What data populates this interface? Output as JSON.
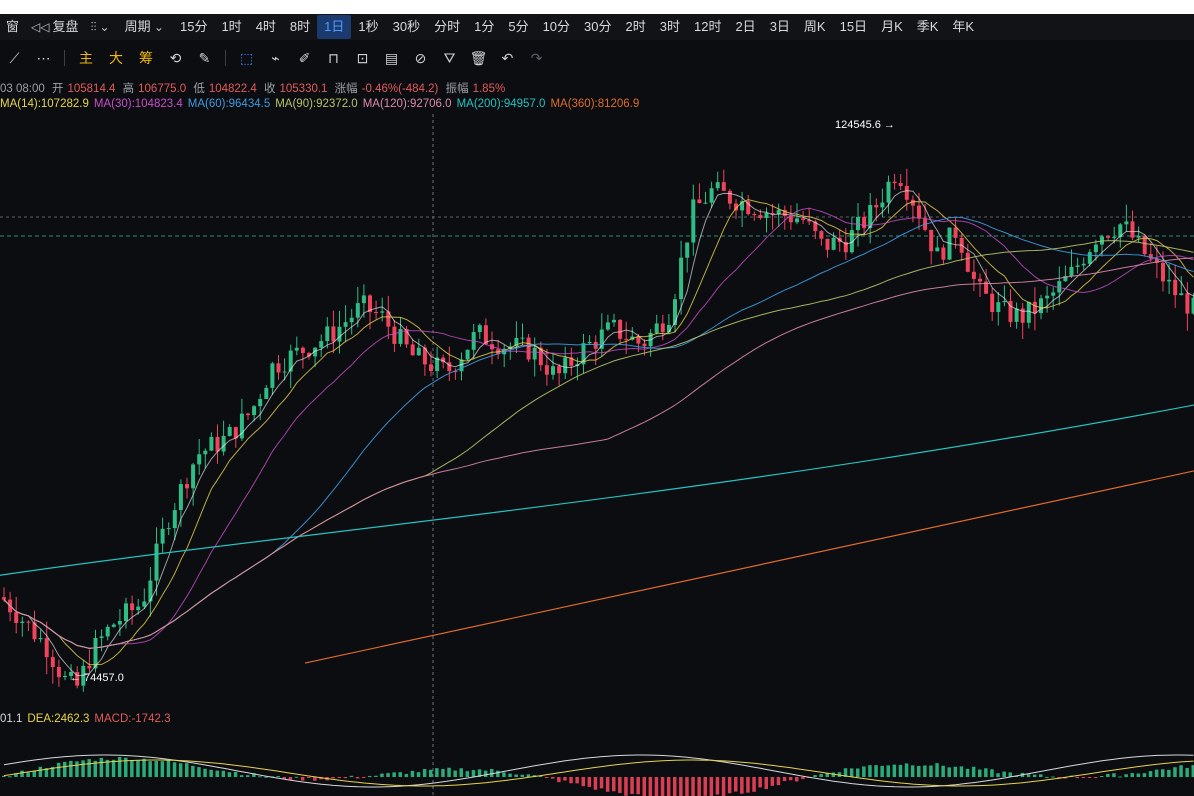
{
  "toolbar": {
    "window_label": "窗",
    "replay_label": "复盘",
    "period_label": "周期",
    "timeframes": [
      "15分",
      "1时",
      "4时",
      "8时",
      "1日",
      "1秒",
      "30秒",
      "分时",
      "1分",
      "5分",
      "10分",
      "30分",
      "2时",
      "3时",
      "12时",
      "2日",
      "3日",
      "周K",
      "15日",
      "月K",
      "季K",
      "年K"
    ],
    "active_timeframe": "1日"
  },
  "drawbar": {
    "indicator_buttons": [
      "主",
      "大",
      "筹"
    ]
  },
  "ohlc": {
    "time": "03 08:00",
    "open_label": "开",
    "open": "105814.4",
    "high_label": "高",
    "high": "106775.0",
    "low_label": "低",
    "low": "104822.4",
    "close_label": "收",
    "close": "105330.1",
    "change_label": "涨幅",
    "change": "-0.46%(-484.2)",
    "amplitude_label": "振幅",
    "amplitude": "1.85%"
  },
  "ma_legend": [
    {
      "text": "MA(14):107282.9",
      "color": "#e8d44d"
    },
    {
      "text": "MA(30):104823.4",
      "color": "#c94fc9"
    },
    {
      "text": "MA(60):96434.5",
      "color": "#3f9be0"
    },
    {
      "text": "MA(90):92372.0",
      "color": "#b7c46a"
    },
    {
      "text": "MA(120):92706.0",
      "color": "#d98aa8"
    },
    {
      "text": "MA(200):94957.0",
      "color": "#25c2c2"
    },
    {
      "text": "MA(360):81206.9",
      "color": "#e06a2c"
    }
  ],
  "macd_legend": [
    {
      "text": "01.1",
      "color": "#d7d9dc"
    },
    {
      "text": "DEA:2462.3",
      "color": "#e8d44d"
    },
    {
      "text": "MACD:-1742.3",
      "color": "#e25b5b"
    }
  ],
  "colors": {
    "up": "#2ebd85",
    "down": "#f0445c",
    "bg": "#0b0d10"
  },
  "chart_data": {
    "type": "candlestick",
    "high_marker": "124545.6",
    "low_marker": "74457.0",
    "high_value": 124545.6,
    "low_value": 74457.0,
    "series": [
      {
        "name": "MA(14)",
        "last": 107282.9
      },
      {
        "name": "MA(30)",
        "last": 104823.4
      },
      {
        "name": "MA(60)",
        "last": 96434.5
      },
      {
        "name": "MA(90)",
        "last": 92372.0
      },
      {
        "name": "MA(120)",
        "last": 92706.0
      },
      {
        "name": "MA(200)",
        "last": 94957.0
      },
      {
        "name": "MA(360)",
        "last": 81206.9
      }
    ],
    "macd": {
      "dea": 2462.3,
      "macd": -1742.3
    }
  }
}
